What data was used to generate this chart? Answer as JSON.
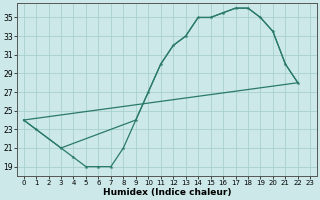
{
  "xlabel": "Humidex (Indice chaleur)",
  "xlim": [
    -0.5,
    23.5
  ],
  "ylim": [
    18.0,
    36.5
  ],
  "xticks": [
    0,
    1,
    2,
    3,
    4,
    5,
    6,
    7,
    8,
    9,
    10,
    11,
    12,
    13,
    14,
    15,
    16,
    17,
    18,
    19,
    20,
    21,
    22,
    23
  ],
  "yticks": [
    19,
    21,
    23,
    25,
    27,
    29,
    31,
    33,
    35
  ],
  "line_color": "#2a7a6a",
  "bg_color": "#cce8e8",
  "grid_color": "#a8d0ce",
  "curve1_x": [
    0,
    1,
    3,
    4,
    5,
    6,
    7,
    8,
    9,
    10,
    11,
    12,
    13,
    14,
    15,
    16,
    17,
    18,
    19,
    20,
    21,
    22
  ],
  "curve1_y": [
    24,
    23,
    21,
    20,
    19,
    19,
    19,
    21,
    24,
    27,
    30,
    32,
    33,
    35,
    35,
    35.5,
    36,
    36,
    35,
    33.5,
    30,
    28
  ],
  "curve2_x": [
    0,
    3,
    9,
    10,
    11,
    12,
    13,
    14,
    15,
    16,
    17,
    18,
    19,
    20,
    21,
    22
  ],
  "curve2_y": [
    24,
    21,
    24,
    27,
    30,
    32,
    33,
    35,
    35,
    35.5,
    36,
    36,
    35,
    33.5,
    30,
    28
  ],
  "curve3_x": [
    0,
    22
  ],
  "curve3_y": [
    24,
    28
  ]
}
